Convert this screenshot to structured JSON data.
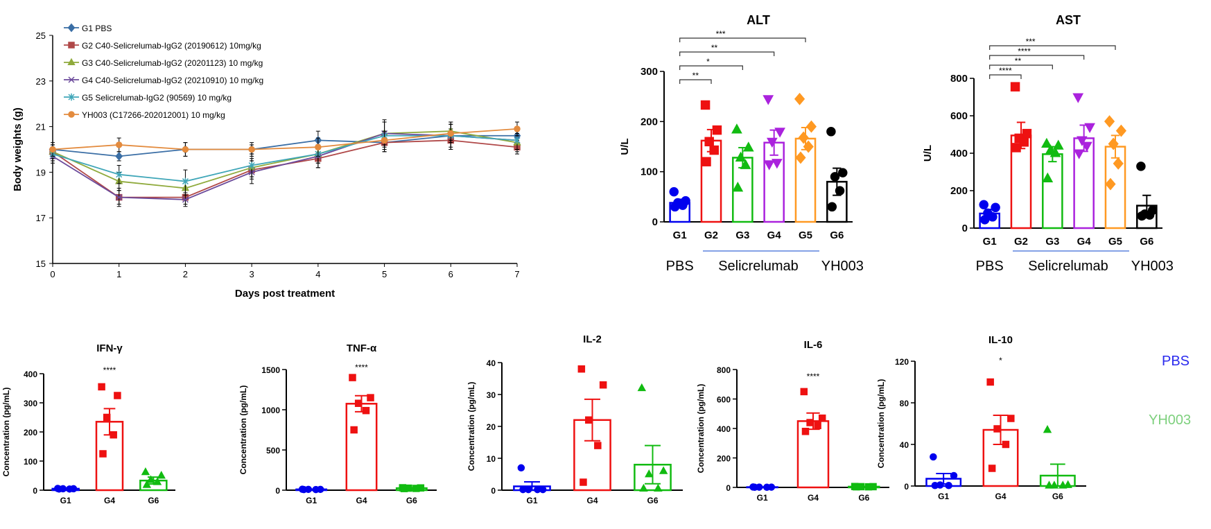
{
  "chart_data": [
    {
      "id": "bw",
      "type": "line",
      "xlabel": "Days post treatment",
      "ylabel": "Body weights (g)",
      "xlim": [
        0,
        7
      ],
      "ylim": [
        15,
        25
      ],
      "xticks": [
        "0",
        "1",
        "2",
        "3",
        "4",
        "5",
        "6",
        "7"
      ],
      "yticks": [
        "15",
        "17",
        "19",
        "21",
        "23",
        "25"
      ],
      "x": [
        0,
        1,
        2,
        3,
        4,
        5,
        6,
        7
      ],
      "legend": "top-left",
      "series": [
        {
          "name": "G1 PBS",
          "color": "#3a6ea5",
          "marker": "diamond",
          "values": [
            20.0,
            19.7,
            20.0,
            20.0,
            20.4,
            20.3,
            20.6,
            20.6
          ],
          "err": [
            0.2,
            0.2,
            0.3,
            0.2,
            0.4,
            0.4,
            0.3,
            0.3
          ]
        },
        {
          "name": "G2 C40-Selicrelumab-IgG2 (20190612) 10mg/kg",
          "color": "#b04848",
          "marker": "square",
          "values": [
            19.9,
            17.9,
            17.9,
            19.1,
            19.6,
            20.3,
            20.4,
            20.1
          ],
          "err": [
            0.3,
            0.3,
            0.3,
            0.4,
            0.4,
            0.4,
            0.4,
            0.3
          ]
        },
        {
          "name": "G3 C40-Selicrelumab-IgG2 (20201123) 10 mg/kg",
          "color": "#8faa3c",
          "marker": "triangle",
          "values": [
            19.9,
            18.6,
            18.3,
            19.2,
            19.8,
            20.7,
            20.8,
            20.3
          ],
          "err": [
            0.3,
            0.4,
            0.3,
            0.4,
            0.4,
            0.5,
            0.4,
            0.4
          ]
        },
        {
          "name": "G4 C40-Selicrelumab-IgG2 (20210910) 10 mg/kg",
          "color": "#6b4a9b",
          "marker": "x",
          "values": [
            19.7,
            17.9,
            17.8,
            19.0,
            19.7,
            20.7,
            20.6,
            20.4
          ],
          "err": [
            0.3,
            0.4,
            0.3,
            0.5,
            0.5,
            0.6,
            0.5,
            0.4
          ]
        },
        {
          "name": "G5 Selicrelumab-IgG2 (90569) 10 mg/kg",
          "color": "#3fa6b8",
          "marker": "star",
          "values": [
            19.8,
            18.9,
            18.6,
            19.3,
            19.8,
            20.6,
            20.6,
            20.4
          ],
          "err": [
            0.3,
            0.4,
            0.5,
            0.5,
            0.4,
            0.6,
            0.6,
            0.4
          ]
        },
        {
          "name": "YH003 (C17266-202012001) 10 mg/kg",
          "color": "#e38b3e",
          "marker": "circle",
          "values": [
            20.0,
            20.2,
            20.0,
            20.0,
            20.1,
            20.4,
            20.7,
            20.9
          ],
          "err": [
            0.3,
            0.3,
            0.3,
            0.3,
            0.4,
            0.4,
            0.4,
            0.3
          ]
        }
      ]
    },
    {
      "id": "alt",
      "type": "bar",
      "title": "ALT",
      "ylabel": "U/L",
      "ylim": [
        0,
        300
      ],
      "yticks": [
        "0",
        "100",
        "200",
        "300"
      ],
      "categories": [
        "G1",
        "G2",
        "G3",
        "G4",
        "G5",
        "G6"
      ],
      "colors": [
        "#0000ee",
        "#ee1111",
        "#11bb11",
        "#aa22dd",
        "#ff9922",
        "#000000"
      ],
      "markers": [
        "circle",
        "square",
        "triangle",
        "triangle-down",
        "diamond",
        "circle"
      ],
      "values": [
        38,
        162,
        128,
        158,
        166,
        80
      ],
      "sem": [
        7,
        22,
        20,
        25,
        22,
        27
      ],
      "points": [
        [
          60,
          42,
          38,
          33,
          30
        ],
        [
          233,
          183,
          160,
          143,
          120
        ],
        [
          184,
          148,
          128,
          113,
          68
        ],
        [
          245,
          180,
          160,
          118,
          115
        ],
        [
          245,
          190,
          168,
          150,
          128
        ],
        [
          180,
          98,
          90,
          62,
          30
        ]
      ],
      "group_labels": [
        "PBS",
        "Selicrelumab",
        "YH003"
      ],
      "brackets": [
        {
          "to": 1,
          "label": "**"
        },
        {
          "to": 2,
          "label": "*"
        },
        {
          "to": 3,
          "label": "**"
        },
        {
          "to": 4,
          "label": "***"
        }
      ]
    },
    {
      "id": "ast",
      "type": "bar",
      "title": "AST",
      "ylabel": "U/L",
      "ylim": [
        0,
        800
      ],
      "yticks": [
        "0",
        "200",
        "400",
        "600",
        "800"
      ],
      "categories": [
        "G1",
        "G2",
        "G3",
        "G4",
        "G5",
        "G6"
      ],
      "colors": [
        "#0000ee",
        "#ee1111",
        "#11bb11",
        "#aa22dd",
        "#ff9922",
        "#000000"
      ],
      "markers": [
        "circle",
        "square",
        "triangle",
        "triangle-down",
        "diamond",
        "circle"
      ],
      "values": [
        78,
        495,
        395,
        480,
        435,
        120
      ],
      "sem": [
        22,
        70,
        40,
        70,
        60,
        55
      ],
      "points": [
        [
          125,
          110,
          80,
          60,
          45
        ],
        [
          755,
          505,
          480,
          460,
          430
        ],
        [
          450,
          440,
          415,
          400,
          265
        ],
        [
          700,
          540,
          470,
          440,
          400
        ],
        [
          570,
          520,
          450,
          345,
          235
        ],
        [
          330,
          95,
          75,
          70,
          65
        ]
      ],
      "group_labels": [
        "PBS",
        "Selicrelumab",
        "YH003"
      ],
      "brackets": [
        {
          "to": 1,
          "label": "****"
        },
        {
          "to": 2,
          "label": "**"
        },
        {
          "to": 3,
          "label": "****"
        },
        {
          "to": 4,
          "label": "***"
        }
      ]
    },
    {
      "id": "ifn",
      "type": "bar",
      "title": "IFN-γ",
      "ylabel": "Concentration (pg/mL)",
      "ylim": [
        0,
        400
      ],
      "yticks": [
        "0",
        "100",
        "200",
        "300",
        "400"
      ],
      "categories": [
        "G1",
        "G4",
        "G6"
      ],
      "colors": [
        "#0000ee",
        "#ee1111",
        "#11bb11"
      ],
      "markers": [
        "circle",
        "square",
        "triangle"
      ],
      "values": [
        5,
        235,
        33
      ],
      "sem": [
        2,
        45,
        12
      ],
      "points": [
        [
          6,
          5,
          5,
          4,
          4
        ],
        [
          355,
          325,
          250,
          190,
          125
        ],
        [
          62,
          50,
          35,
          28,
          18
        ]
      ],
      "sig": {
        "index": 1,
        "label": "****"
      }
    },
    {
      "id": "tnf",
      "type": "bar",
      "title": "TNF-α",
      "ylabel": "Concentration (pg/mL)",
      "ylim": [
        0,
        1500
      ],
      "yticks": [
        "0",
        "500",
        "1000",
        "1500"
      ],
      "categories": [
        "G1",
        "G4",
        "G6"
      ],
      "colors": [
        "#0000ee",
        "#ee1111",
        "#11bb11"
      ],
      "markers": [
        "circle",
        "square",
        "square"
      ],
      "values": [
        10,
        1075,
        25
      ],
      "sem": [
        3,
        100,
        5
      ],
      "points": [
        [
          12,
          10,
          10,
          8,
          8
        ],
        [
          1400,
          1150,
          1080,
          990,
          750
        ],
        [
          30,
          28,
          25,
          22,
          20
        ]
      ],
      "sig": {
        "index": 1,
        "label": "****"
      }
    },
    {
      "id": "il2",
      "type": "bar",
      "title": "IL-2",
      "ylabel": "Concentration (pg/mL)",
      "ylim": [
        0,
        40
      ],
      "yticks": [
        "0",
        "10",
        "20",
        "30",
        "40"
      ],
      "categories": [
        "G1",
        "G4",
        "G6"
      ],
      "colors": [
        "#0000ee",
        "#ee1111",
        "#11bb11"
      ],
      "markers": [
        "circle",
        "square",
        "triangle"
      ],
      "values": [
        1.2,
        22,
        8
      ],
      "sem": [
        1.4,
        6.5,
        6
      ],
      "points": [
        [
          7,
          0.2,
          0.2,
          0.2,
          0.2
        ],
        [
          38,
          33,
          22,
          14,
          2.5
        ],
        [
          32,
          6,
          5,
          0.5,
          0.5
        ]
      ]
    },
    {
      "id": "il6",
      "type": "bar",
      "title": "IL-6",
      "ylabel": "Concentration (pg/mL)",
      "ylim": [
        0,
        800
      ],
      "yticks": [
        "0",
        "200",
        "400",
        "600",
        "800"
      ],
      "categories": [
        "G1",
        "G4",
        "G6"
      ],
      "colors": [
        "#0000ee",
        "#ee1111",
        "#11bb11"
      ],
      "markers": [
        "circle",
        "square",
        "square"
      ],
      "values": [
        2,
        450,
        5
      ],
      "sem": [
        1,
        55,
        2
      ],
      "points": [
        [
          3,
          2,
          2,
          1,
          1
        ],
        [
          650,
          470,
          440,
          420,
          380
        ],
        [
          6,
          5,
          5,
          4,
          4
        ]
      ],
      "sig": {
        "index": 1,
        "label": "****"
      }
    },
    {
      "id": "il10",
      "type": "bar",
      "title": "IL-10",
      "ylabel": "Concentration (pg/mL)",
      "ylim": [
        0,
        120
      ],
      "yticks": [
        "0",
        "40",
        "80",
        "120"
      ],
      "categories": [
        "G1",
        "G4",
        "G6"
      ],
      "colors": [
        "#0000ee",
        "#ee1111",
        "#11bb11"
      ],
      "markers": [
        "circle",
        "square",
        "triangle"
      ],
      "values": [
        7,
        54,
        10
      ],
      "sem": [
        5,
        14,
        11
      ],
      "points": [
        [
          28,
          10,
          1,
          0.5,
          0.5
        ],
        [
          100,
          65,
          55,
          40,
          17
        ],
        [
          54,
          1,
          0.5,
          0.5,
          0.5
        ]
      ],
      "sig": {
        "index": 1,
        "label": "*"
      }
    }
  ],
  "side_labels": {
    "pbs": {
      "text": "PBS",
      "color": "#2a2aee"
    },
    "yh003": {
      "text": "YH003",
      "color": "#7ed07e"
    }
  }
}
